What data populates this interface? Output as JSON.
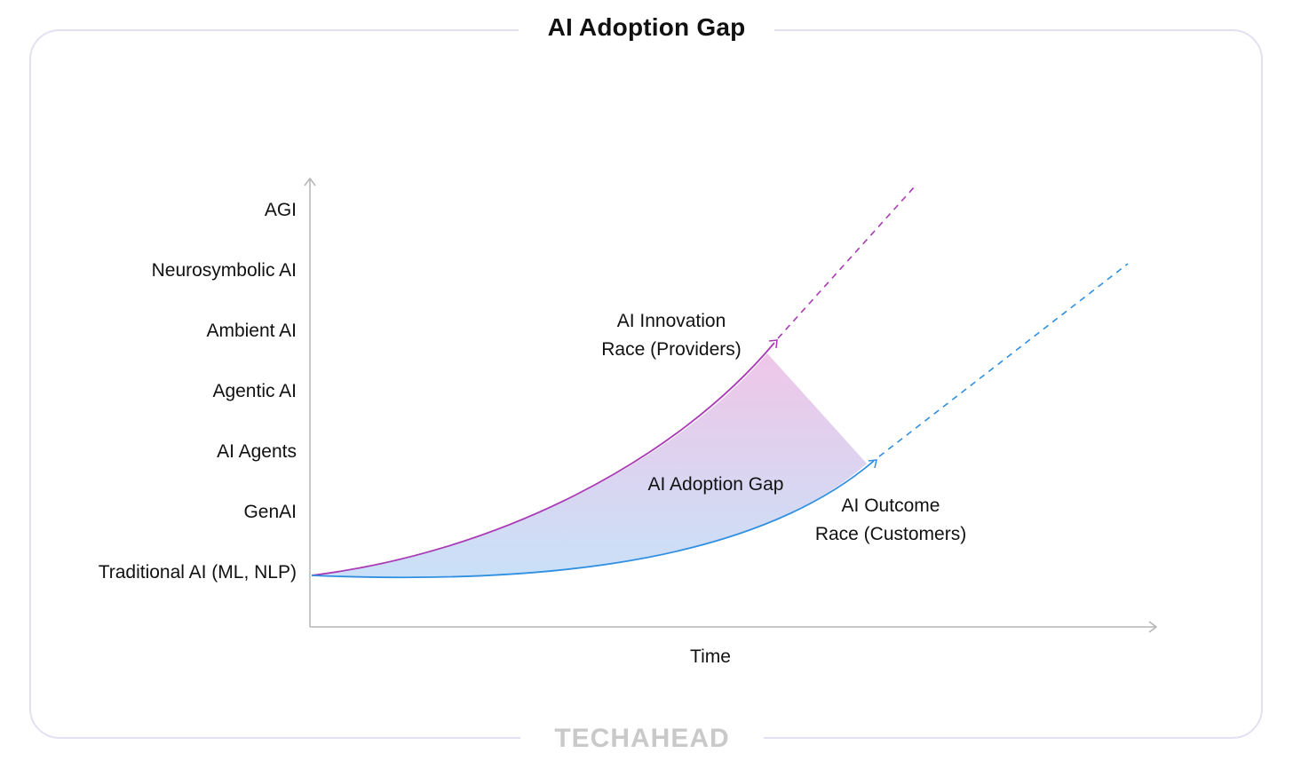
{
  "title": "AI Adoption Gap",
  "brand": "TECHAHEAD",
  "colors": {
    "innovation": "#a93bb5",
    "outcome": "#2f8fe0",
    "axis": "#b5b5b5",
    "gap_top": "#efc6e8",
    "gap_bottom": "#c9e1f8"
  },
  "y_axis": {
    "levels": [
      "Traditional AI (ML, NLP)",
      "GenAI",
      "AI Agents",
      "Agentic AI",
      "Ambient AI",
      "Neurosymbolic AI",
      "AGI"
    ]
  },
  "x_axis": {
    "label": "Time"
  },
  "curves": {
    "innovation": {
      "line1": "AI Innovation",
      "line2": "Race (Providers)"
    },
    "outcome": {
      "line1": "AI Outcome",
      "line2": "Race (Customers)"
    }
  },
  "gap_label": "AI Adoption Gap"
}
